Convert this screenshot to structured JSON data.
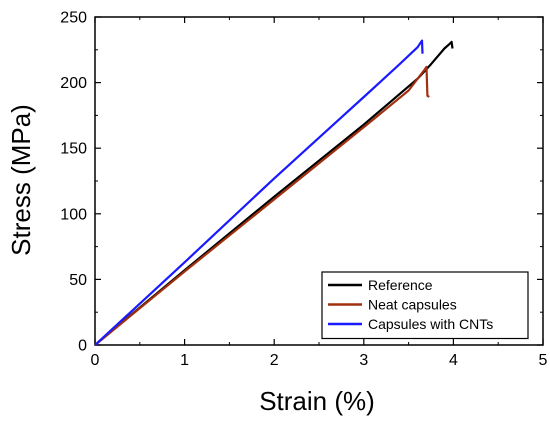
{
  "chart_data": {
    "type": "line",
    "title": "",
    "xlabel": "Strain (%)",
    "ylabel": "Stress (MPa)",
    "xlim": [
      0,
      5
    ],
    "ylim": [
      0,
      250
    ],
    "xticks": [
      0,
      1,
      2,
      3,
      4,
      5
    ],
    "yticks": [
      0,
      50,
      100,
      150,
      200,
      250
    ],
    "grid": false,
    "legend_position": "bottom-right",
    "series": [
      {
        "name": "Reference",
        "color": "#000000",
        "x": [
          0,
          1,
          2,
          3,
          3.6,
          3.75,
          3.85,
          3.9,
          3.95,
          3.98,
          3.99
        ],
        "y": [
          0,
          57,
          113,
          168,
          203,
          214,
          222,
          226,
          229,
          231,
          226
        ]
      },
      {
        "name": "Neat capsules",
        "color": "#a0300e",
        "x": [
          0,
          1,
          2,
          3,
          3.5,
          3.68,
          3.7,
          3.71,
          3.73
        ],
        "y": [
          0,
          56,
          111,
          166,
          194,
          210,
          212,
          190,
          189
        ]
      },
      {
        "name": "Capsules with CNTs",
        "color": "#1a1aff",
        "x": [
          0,
          1,
          2,
          3,
          3.4,
          3.6,
          3.65,
          3.655
        ],
        "y": [
          0,
          63,
          127,
          189,
          214,
          227,
          232,
          222
        ]
      }
    ]
  }
}
